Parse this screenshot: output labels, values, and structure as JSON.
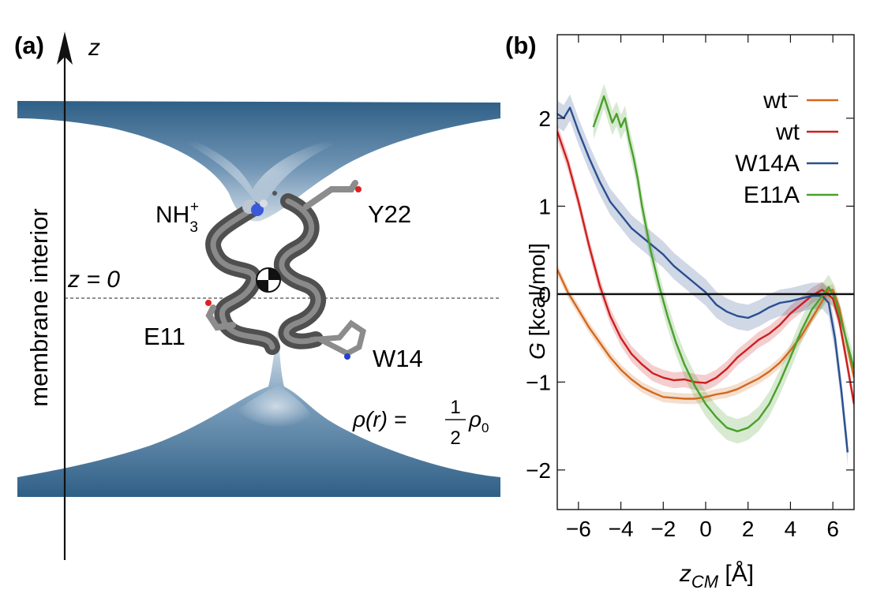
{
  "colors": {
    "membrane": "#2f5f86",
    "membrane_light": "#dfe8f0",
    "helix": "#5a5a5a",
    "orange": "#d2691e",
    "red": "#cc1f1f",
    "blue": "#2a4f8f",
    "green": "#4aa02c"
  },
  "panel_a": {
    "label": "(a)",
    "z_axis_label": "z",
    "interior_label": "membrane interior",
    "z0_label": "z = 0",
    "residues": {
      "nh3_base": "NH",
      "nh3_sub": "3",
      "nh3_sup": "+",
      "y22": "Y22",
      "e11": "E11",
      "w14": "W14"
    },
    "density": {
      "lhs": "ρ(r) =",
      "num": "1",
      "den": "2",
      "rhs": "ρ",
      "rhs_sub": "0"
    }
  },
  "panel_b": {
    "label": "(b)"
  },
  "chart_data": {
    "type": "line",
    "xlabel": "z",
    "xlabel_sub": "CM",
    "xlabel_unit": " [Å]",
    "ylabel_var": "G",
    "ylabel_unit": " [kcal/mol]",
    "xlim": [
      -7,
      7
    ],
    "ylim": [
      -2.45,
      2.95
    ],
    "xticks": [
      -6,
      -4,
      -2,
      0,
      2,
      4,
      6
    ],
    "yticks": [
      -2,
      -1,
      0,
      1,
      2
    ],
    "zero_line": true,
    "legend_position": "top-right",
    "series": [
      {
        "name": "wt⁻",
        "color": "#d2691e",
        "band": 0.06,
        "x": [
          -7,
          -6.5,
          -6,
          -5.5,
          -5,
          -4.5,
          -4,
          -3.5,
          -3,
          -2.5,
          -2,
          -1.5,
          -1,
          -0.5,
          0,
          0.5,
          1,
          1.5,
          2,
          2.5,
          3,
          3.5,
          4,
          4.5,
          5,
          5.5,
          5.8,
          6,
          6.3,
          6.6,
          7
        ],
        "y": [
          0.28,
          0.02,
          -0.18,
          -0.38,
          -0.55,
          -0.72,
          -0.86,
          -0.97,
          -1.06,
          -1.12,
          -1.17,
          -1.18,
          -1.19,
          -1.19,
          -1.17,
          -1.14,
          -1.12,
          -1.08,
          -1.02,
          -0.96,
          -0.88,
          -0.78,
          -0.64,
          -0.48,
          -0.28,
          -0.08,
          0.04,
          0.05,
          -0.15,
          -0.5,
          -0.95
        ]
      },
      {
        "name": "wt",
        "color": "#cc1f1f",
        "band": 0.09,
        "x": [
          -7,
          -6.5,
          -6,
          -5.5,
          -5,
          -4.5,
          -4,
          -3.5,
          -3,
          -2.5,
          -2,
          -1.5,
          -1,
          -0.5,
          0,
          0.5,
          1,
          1.5,
          2,
          2.5,
          3,
          3.5,
          4,
          4.5,
          5,
          5.5,
          6,
          6.3,
          6.6,
          7
        ],
        "y": [
          1.85,
          1.5,
          1.05,
          0.55,
          0.1,
          -0.25,
          -0.5,
          -0.68,
          -0.8,
          -0.9,
          -0.95,
          -0.98,
          -0.97,
          -1.0,
          -1.01,
          -0.95,
          -0.85,
          -0.72,
          -0.62,
          -0.52,
          -0.45,
          -0.35,
          -0.22,
          -0.12,
          -0.02,
          0.05,
          -0.05,
          -0.3,
          -0.7,
          -1.25
        ]
      },
      {
        "name": "W14A",
        "color": "#2a4f8f",
        "band": 0.15,
        "x": [
          -7,
          -6.7,
          -6.4,
          -6,
          -5.5,
          -5,
          -4.5,
          -4,
          -3.5,
          -3,
          -2.5,
          -2,
          -1.5,
          -1,
          -0.5,
          0,
          0.5,
          1,
          1.5,
          2,
          2.5,
          3,
          3.5,
          4,
          4.5,
          5,
          5.5,
          5.8,
          6.1,
          6.4,
          6.7
        ],
        "y": [
          2.05,
          2.0,
          2.12,
          1.85,
          1.55,
          1.28,
          1.05,
          0.9,
          0.75,
          0.65,
          0.55,
          0.45,
          0.32,
          0.22,
          0.12,
          0.02,
          -0.12,
          -0.2,
          -0.25,
          -0.27,
          -0.22,
          -0.15,
          -0.1,
          -0.08,
          -0.05,
          -0.02,
          -0.02,
          -0.1,
          -0.5,
          -1.1,
          -1.8
        ]
      },
      {
        "name": "E11A",
        "color": "#4aa02c",
        "band": 0.14,
        "x": [
          -5.3,
          -5.0,
          -4.8,
          -4.6,
          -4.4,
          -4.2,
          -4.0,
          -3.8,
          -3.6,
          -3.4,
          -3.2,
          -3.0,
          -2.6,
          -2.2,
          -1.8,
          -1.4,
          -1.0,
          -0.5,
          0,
          0.5,
          1,
          1.5,
          2,
          2.5,
          3,
          3.5,
          4,
          4.5,
          5,
          5.5,
          5.8,
          6.1,
          6.5,
          7
        ],
        "y": [
          1.9,
          2.1,
          2.25,
          2.1,
          1.95,
          2.05,
          1.9,
          2.0,
          1.75,
          1.55,
          1.3,
          1.0,
          0.5,
          0.1,
          -0.25,
          -0.55,
          -0.8,
          -1.05,
          -1.25,
          -1.4,
          -1.52,
          -1.56,
          -1.52,
          -1.42,
          -1.25,
          -1.0,
          -0.72,
          -0.42,
          -0.18,
          -0.02,
          0.08,
          -0.05,
          -0.4,
          -0.85
        ]
      }
    ]
  }
}
